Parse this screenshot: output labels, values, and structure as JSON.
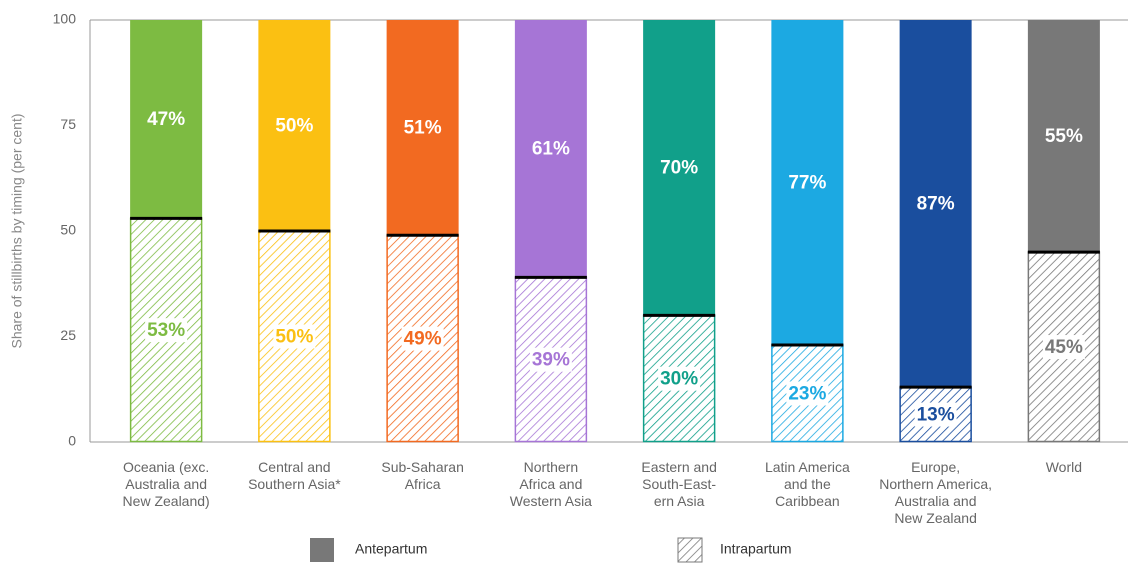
{
  "chart_data": {
    "type": "stacked_bar",
    "ylabel": "Share of stillbirths by timing (per cent)",
    "categories": [
      "Oceania (exc.\nAustralia and\nNew Zealand)",
      "Central and\nSouthern Asia*",
      "Sub-Saharan\nAfrica",
      "Northern\nAfrica and\nWestern Asia",
      "Eastern and\nSouth-East-\nern Asia",
      "Latin America\nand the\nCaribbean",
      "Europe,\nNorthern America,\nAustralia and\nNew Zealand",
      "World"
    ],
    "bar_colors": [
      "#7dbb42",
      "#fbc012",
      "#f26a21",
      "#a675d6",
      "#11a08a",
      "#1ca9e2",
      "#1a4e9e",
      "#787878"
    ],
    "series": [
      {
        "name": "Intrapartum",
        "color": "#787878",
        "hatched": true,
        "values": [
          53,
          50,
          49,
          39,
          30,
          23,
          13,
          45
        ],
        "value_labels": [
          "53%",
          "50%",
          "49%",
          "39%",
          "30%",
          "23%",
          "13%",
          "45%"
        ]
      },
      {
        "name": "Antepartum",
        "color": "#787878",
        "hatched": false,
        "values": [
          47,
          50,
          51,
          61,
          70,
          77,
          87,
          55
        ],
        "value_labels": [
          "47%",
          "50%",
          "51%",
          "61%",
          "70%",
          "77%",
          "87%",
          "55%"
        ]
      }
    ],
    "ylim": [
      0,
      100
    ],
    "yticks": [
      0,
      25,
      50,
      75,
      100
    ],
    "grid": false
  }
}
